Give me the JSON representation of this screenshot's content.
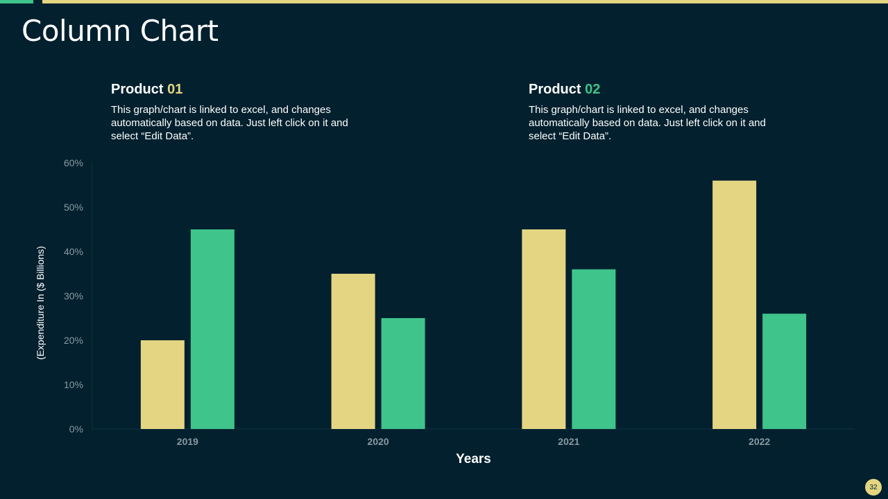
{
  "slide": {
    "title": "Column Chart",
    "page_number": "32"
  },
  "products": [
    {
      "label": "Product",
      "number": "01",
      "description": "This graph/chart is linked to excel, and changes automatically based on data. Just left click on it and select “Edit Data”."
    },
    {
      "label": "Product",
      "number": "02",
      "description": "This graph/chart is linked to excel, and changes automatically based on data. Just left click on it and select “Edit Data”."
    }
  ],
  "colors": {
    "background": "#03202e",
    "product1": "#e3d582",
    "product2": "#3fc48b",
    "axis_text": "#8a9aa3"
  },
  "chart_data": {
    "type": "bar",
    "categories": [
      "2019",
      "2020",
      "2021",
      "2022"
    ],
    "series": [
      {
        "values": [
          20,
          35,
          45,
          56
        ]
      },
      {
        "values": [
          45,
          25,
          36,
          26
        ]
      }
    ],
    "xlabel": "Years",
    "ylabel": "(Expenditure In ($ Billions)",
    "ylim": [
      0,
      60
    ],
    "yticks": [
      0,
      10,
      20,
      30,
      40,
      50,
      60
    ],
    "ytick_labels": [
      "0%",
      "10%",
      "20%",
      "30%",
      "40%",
      "50%",
      "60%"
    ],
    "grid": false,
    "legend": "none"
  }
}
